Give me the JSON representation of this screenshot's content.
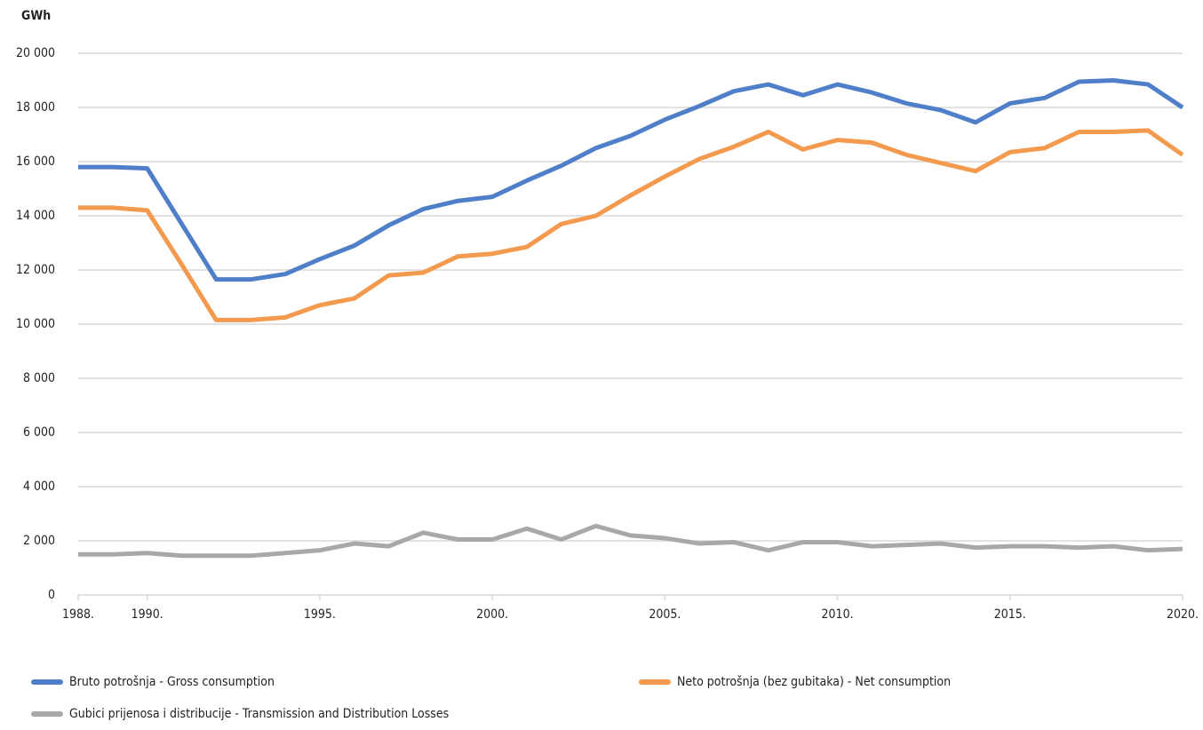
{
  "chart_data": {
    "type": "line",
    "y_label": "GWh",
    "x": [
      1988,
      1989,
      1990,
      1991,
      1992,
      1993,
      1994,
      1995,
      1996,
      1997,
      1998,
      1999,
      2000,
      2001,
      2002,
      2003,
      2004,
      2005,
      2006,
      2007,
      2008,
      2009,
      2010,
      2011,
      2012,
      2013,
      2014,
      2015,
      2016,
      2017,
      2018,
      2019,
      2020
    ],
    "series": [
      {
        "name": "Bruto potrošnja - Gross consumption",
        "color": "#4f7fc8",
        "values": [
          15800,
          15800,
          15750,
          13700,
          11650,
          11650,
          11850,
          12400,
          12900,
          13650,
          14250,
          14550,
          14700,
          15300,
          15850,
          16500,
          16950,
          17550,
          18050,
          18600,
          18850,
          18450,
          18850,
          18550,
          18150,
          17900,
          17450,
          18150,
          18350,
          18950,
          19000,
          18850,
          18000
        ]
      },
      {
        "name": "Neto potrošnja (bez gubitaka) - Net consumption",
        "color": "#f39a4e",
        "values": [
          14300,
          14300,
          14200,
          12200,
          10150,
          10150,
          10250,
          10700,
          10950,
          11800,
          11900,
          12500,
          12600,
          12850,
          13700,
          14000,
          14750,
          15450,
          16100,
          16550,
          17100,
          16450,
          16800,
          16700,
          16250,
          15950,
          15650,
          16350,
          16500,
          17100,
          17100,
          17150,
          16250
        ]
      },
      {
        "name": "Gubici prijenosa i distribucije - Transmission and Distribution Losses",
        "color": "#a8a8a8",
        "values": [
          1500,
          1500,
          1550,
          1450,
          1450,
          1450,
          1550,
          1650,
          1900,
          1800,
          2300,
          2050,
          2050,
          2450,
          2050,
          2550,
          2200,
          2100,
          1900,
          1950,
          1650,
          1950,
          1950,
          1800,
          1850,
          1900,
          1750,
          1800,
          1800,
          1750,
          1800,
          1650,
          1700
        ]
      }
    ],
    "xlim": [
      1988,
      2020
    ],
    "xticks": [
      {
        "value": 1988,
        "label": "1988."
      },
      {
        "value": 1990,
        "label": "1990."
      },
      {
        "value": 1995,
        "label": "1995."
      },
      {
        "value": 2000,
        "label": "2000."
      },
      {
        "value": 2005,
        "label": "2005."
      },
      {
        "value": 2010,
        "label": "2010."
      },
      {
        "value": 2015,
        "label": "2015."
      },
      {
        "value": 2020,
        "label": "2020."
      }
    ],
    "ylim": [
      0,
      20000
    ],
    "yticks": [
      0,
      {
        "value": 2000,
        "label": "2 000"
      },
      {
        "value": 4000,
        "label": "4 000"
      },
      {
        "value": 6000,
        "label": "6 000"
      },
      {
        "value": 8000,
        "label": "8 000"
      },
      {
        "value": 10000,
        "label": "10 000"
      },
      {
        "value": 12000,
        "label": "12 000"
      },
      {
        "value": 14000,
        "label": "14 000"
      },
      {
        "value": 16000,
        "label": "16 000"
      },
      {
        "value": 18000,
        "label": "18 000"
      },
      {
        "value": 20000,
        "label": "20 000"
      }
    ],
    "grid": true,
    "legend": "bottom"
  }
}
